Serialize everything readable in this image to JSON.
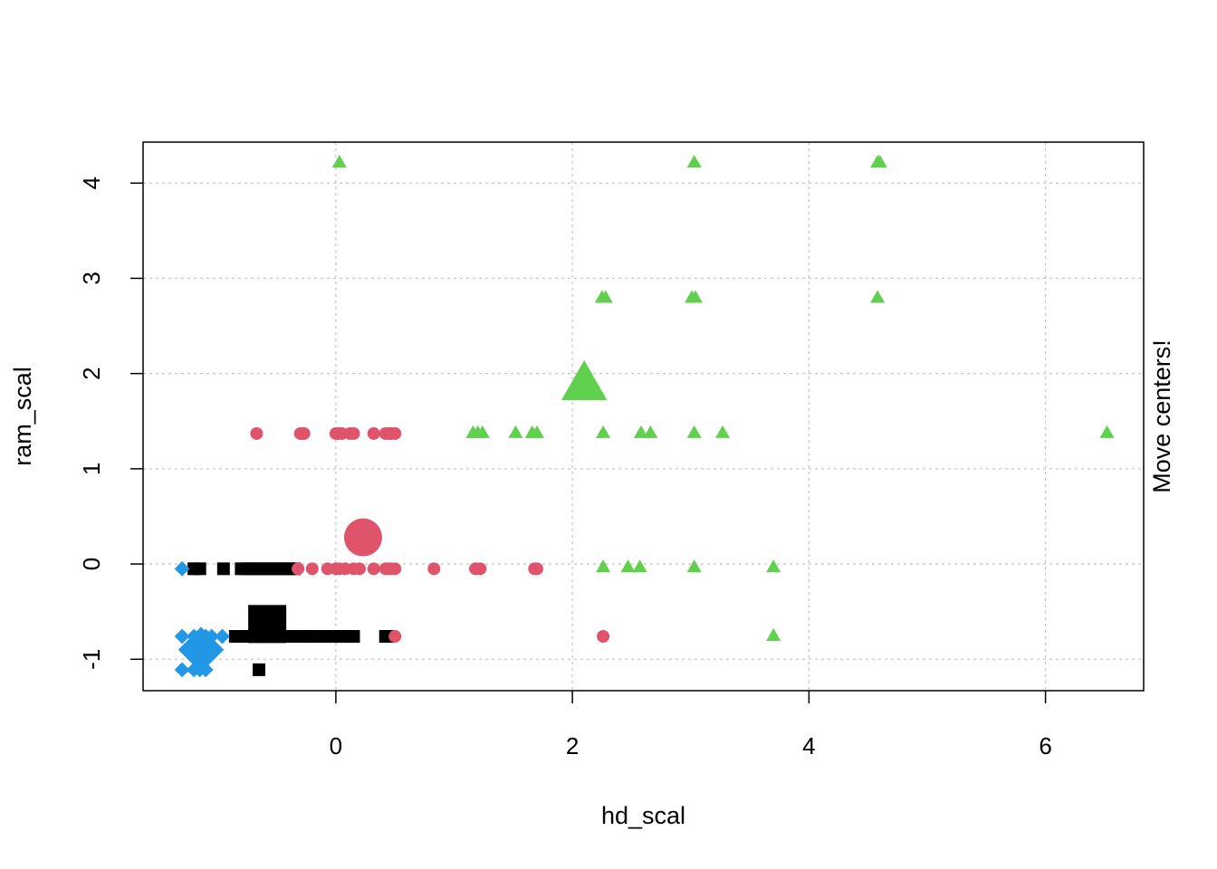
{
  "chart_data": {
    "type": "scatter",
    "title": "",
    "xlabel": "hd_scal",
    "ylabel": "ram_scal",
    "side_label": "Move centers!",
    "xlim": [
      -1.63,
      6.83
    ],
    "ylim": [
      -1.33,
      4.43
    ],
    "x_ticks": [
      0,
      2,
      4,
      6
    ],
    "y_ticks": [
      -1,
      0,
      1,
      2,
      3,
      4
    ],
    "x_tick_labels": [
      "0",
      "2",
      "4",
      "6"
    ],
    "y_tick_labels": [
      "-1",
      "0",
      "1",
      "2",
      "3",
      "4"
    ],
    "grid": true,
    "legend": "none",
    "series": [
      {
        "shape": "square",
        "color": "#000000",
        "points": [
          [
            -1.2,
            -0.05
          ],
          [
            -1.15,
            -0.05
          ],
          [
            -0.95,
            -0.05
          ],
          [
            -0.8,
            -0.05
          ],
          [
            -0.75,
            -0.05
          ],
          [
            -0.7,
            -0.05
          ],
          [
            -0.65,
            -0.05
          ],
          [
            -0.6,
            -0.05
          ],
          [
            -0.55,
            -0.05
          ],
          [
            -0.5,
            -0.05
          ],
          [
            -0.45,
            -0.05
          ],
          [
            -0.4,
            -0.05
          ],
          [
            -0.35,
            -0.05
          ],
          [
            -0.85,
            -0.76
          ],
          [
            -0.75,
            -0.76
          ],
          [
            -0.7,
            -0.76
          ],
          [
            -0.65,
            -0.76
          ],
          [
            -0.6,
            -0.76
          ],
          [
            -0.5,
            -0.76
          ],
          [
            -0.4,
            -0.76
          ],
          [
            -0.3,
            -0.76
          ],
          [
            -0.25,
            -0.76
          ],
          [
            -0.2,
            -0.76
          ],
          [
            -0.1,
            -0.76
          ],
          [
            0.0,
            -0.76
          ],
          [
            0.05,
            -0.76
          ],
          [
            0.1,
            -0.76
          ],
          [
            0.15,
            -0.76
          ],
          [
            0.42,
            -0.76
          ],
          [
            0.45,
            -0.76
          ],
          [
            -0.65,
            -1.11
          ]
        ],
        "center": [
          -0.58,
          -0.63
        ]
      },
      {
        "shape": "circle",
        "color": "#DF536B",
        "points": [
          [
            -0.67,
            1.37
          ],
          [
            -0.3,
            1.37
          ],
          [
            -0.28,
            1.37
          ],
          [
            -0.27,
            1.37
          ],
          [
            0.0,
            1.37
          ],
          [
            0.02,
            1.37
          ],
          [
            0.05,
            1.37
          ],
          [
            0.12,
            1.37
          ],
          [
            0.15,
            1.37
          ],
          [
            0.32,
            1.37
          ],
          [
            0.42,
            1.37
          ],
          [
            0.45,
            1.37
          ],
          [
            0.47,
            1.37
          ],
          [
            0.5,
            1.37
          ],
          [
            -0.32,
            -0.05
          ],
          [
            -0.2,
            -0.05
          ],
          [
            -0.07,
            -0.05
          ],
          [
            0.0,
            -0.05
          ],
          [
            0.03,
            -0.05
          ],
          [
            0.08,
            -0.05
          ],
          [
            0.15,
            -0.05
          ],
          [
            0.2,
            -0.05
          ],
          [
            0.32,
            -0.05
          ],
          [
            0.42,
            -0.05
          ],
          [
            0.45,
            -0.05
          ],
          [
            0.47,
            -0.05
          ],
          [
            0.5,
            -0.05
          ],
          [
            0.83,
            -0.05
          ],
          [
            1.18,
            -0.05
          ],
          [
            1.22,
            -0.05
          ],
          [
            1.68,
            -0.05
          ],
          [
            1.7,
            -0.05
          ],
          [
            0.5,
            -0.76
          ],
          [
            2.26,
            -0.76
          ]
        ],
        "center": [
          0.23,
          0.28
        ]
      },
      {
        "shape": "triangle",
        "color": "#61D04F",
        "points": [
          [
            0.03,
            4.22
          ],
          [
            3.03,
            4.22
          ],
          [
            4.58,
            4.22
          ],
          [
            4.6,
            4.22
          ],
          [
            2.25,
            2.8
          ],
          [
            2.28,
            2.8
          ],
          [
            3.01,
            2.8
          ],
          [
            3.04,
            2.8
          ],
          [
            4.58,
            2.8
          ],
          [
            1.16,
            1.38
          ],
          [
            1.2,
            1.38
          ],
          [
            1.24,
            1.38
          ],
          [
            1.52,
            1.38
          ],
          [
            1.66,
            1.38
          ],
          [
            1.7,
            1.38
          ],
          [
            2.26,
            1.38
          ],
          [
            2.58,
            1.38
          ],
          [
            2.66,
            1.38
          ],
          [
            3.03,
            1.38
          ],
          [
            3.27,
            1.38
          ],
          [
            6.52,
            1.38
          ],
          [
            2.26,
            -0.03
          ],
          [
            2.47,
            -0.03
          ],
          [
            2.57,
            -0.03
          ],
          [
            3.03,
            -0.03
          ],
          [
            3.7,
            -0.03
          ],
          [
            3.7,
            -0.75
          ]
        ],
        "center": [
          2.1,
          1.9
        ]
      },
      {
        "shape": "diamond",
        "color": "#2297E6",
        "points": [
          [
            -1.3,
            -0.05
          ],
          [
            -1.3,
            -0.76
          ],
          [
            -1.2,
            -0.76
          ],
          [
            -1.15,
            -0.76
          ],
          [
            -1.1,
            -0.76
          ],
          [
            -1.05,
            -0.76
          ],
          [
            -0.96,
            -0.76
          ],
          [
            -1.3,
            -1.11
          ],
          [
            -1.2,
            -1.11
          ],
          [
            -1.15,
            -1.11
          ],
          [
            -1.1,
            -1.11
          ]
        ],
        "center": [
          -1.14,
          -0.9
        ]
      }
    ]
  }
}
